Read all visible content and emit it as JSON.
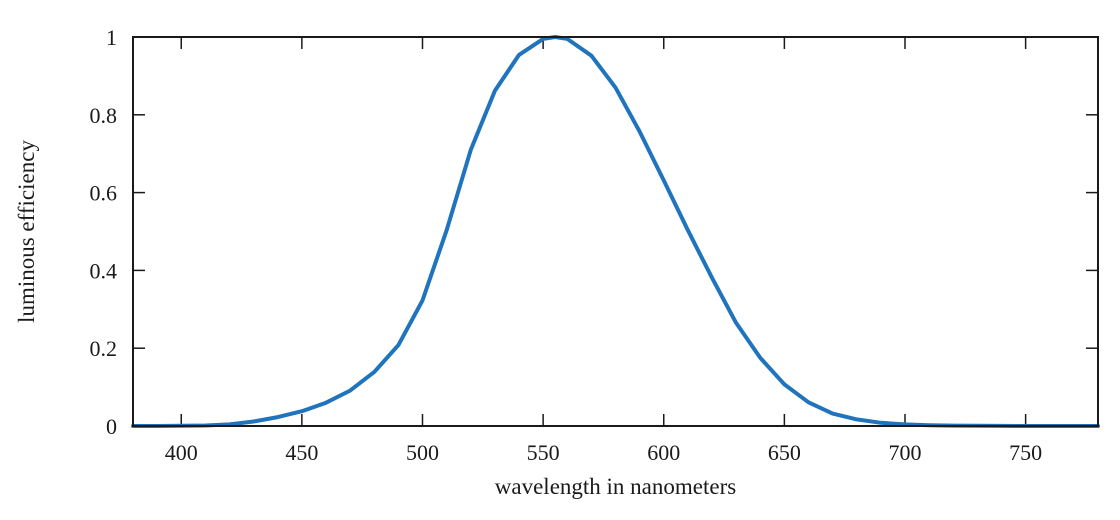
{
  "chart_data": {
    "type": "line",
    "title": "",
    "xlabel": "wavelength in nanometers",
    "ylabel": "luminous efficiency",
    "xlim": [
      380,
      780
    ],
    "ylim": [
      0,
      1
    ],
    "x_ticks": [
      400,
      450,
      500,
      550,
      600,
      650,
      700,
      750
    ],
    "x_tick_labels": [
      "400",
      "450",
      "500",
      "550",
      "600",
      "650",
      "700",
      "750"
    ],
    "y_ticks": [
      0,
      0.2,
      0.4,
      0.6,
      0.8,
      1
    ],
    "y_tick_labels": [
      "0",
      "0.2",
      "0.4",
      "0.6",
      "0.8",
      "1"
    ],
    "grid": false,
    "colors": {
      "line": "#1f74bd",
      "axes": "#1a1a1a"
    },
    "series": [
      {
        "x": [
          380,
          390,
          400,
          410,
          420,
          430,
          440,
          450,
          460,
          470,
          480,
          490,
          500,
          510,
          520,
          530,
          540,
          550,
          555,
          560,
          570,
          580,
          590,
          600,
          610,
          620,
          630,
          640,
          650,
          660,
          670,
          680,
          690,
          700,
          710,
          720,
          730,
          740,
          750,
          760,
          770,
          780
        ],
        "y": [
          0.0,
          0.0001,
          0.0004,
          0.0012,
          0.004,
          0.0116,
          0.023,
          0.038,
          0.06,
          0.091,
          0.139,
          0.208,
          0.323,
          0.503,
          0.71,
          0.862,
          0.954,
          0.995,
          1.0,
          0.995,
          0.952,
          0.87,
          0.757,
          0.631,
          0.503,
          0.381,
          0.265,
          0.175,
          0.107,
          0.061,
          0.032,
          0.017,
          0.0082,
          0.0041,
          0.0021,
          0.001,
          0.0005,
          0.0002,
          0.0001,
          0.0,
          0.0,
          0.0
        ]
      }
    ]
  }
}
